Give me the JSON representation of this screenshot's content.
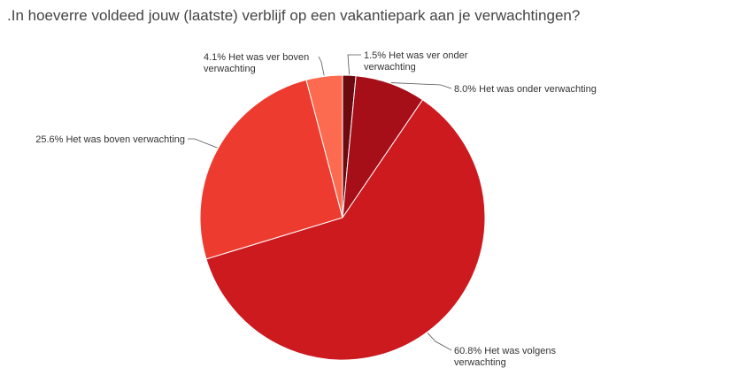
{
  "chart_data": {
    "type": "pie",
    "title": ".In hoeverre voldeed jouw (laatste) verblijf op een vakantiepark aan je verwachtingen?",
    "slices": [
      {
        "key": "ver-onder",
        "pct_label": "1.5%",
        "lines": [
          "Het was ver onder",
          "verwachting"
        ],
        "value": 1.5,
        "color": "#6d0a10"
      },
      {
        "key": "onder",
        "pct_label": "8.0%",
        "lines": [
          "Het was onder verwachting"
        ],
        "value": 8.0,
        "color": "#a60f18"
      },
      {
        "key": "volgens",
        "pct_label": "60.8%",
        "lines": [
          "Het was volgens",
          "verwachting"
        ],
        "value": 60.8,
        "color": "#cc1a1f"
      },
      {
        "key": "boven",
        "pct_label": "25.6%",
        "lines": [
          "Het was boven verwachting"
        ],
        "value": 25.6,
        "color": "#ee3b2f"
      },
      {
        "key": "ver-boven",
        "pct_label": "4.1%",
        "lines": [
          "Het was ver boven",
          "verwachting"
        ],
        "value": 4.1,
        "color": "#fc6b4f"
      }
    ]
  }
}
